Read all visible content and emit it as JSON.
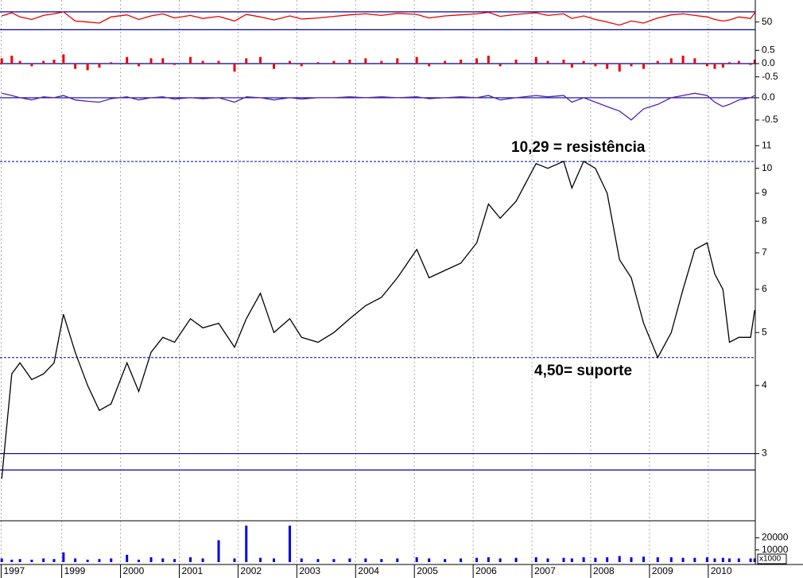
{
  "chart_data": [
    {
      "type": "line",
      "color": "#ee0000",
      "x": [
        1997.98,
        1998.15,
        1998.29,
        1998.49,
        1998.69,
        1998.87,
        1999.03,
        1999.23,
        1999.44,
        1999.64,
        1999.84,
        2000.11,
        2000.31,
        2000.52,
        2000.72,
        2000.92,
        2001.19,
        2001.4,
        2001.67,
        2001.94,
        2002.14,
        2002.38,
        2002.61,
        2002.88,
        2003.08,
        2003.36,
        2003.63,
        2003.9,
        2004.17,
        2004.44,
        2004.71,
        2005.04,
        2005.25,
        2005.52,
        2005.79,
        2006.06,
        2006.26,
        2006.46,
        2006.73,
        2007.07,
        2007.27,
        2007.54,
        2007.68,
        2007.88,
        2008.08,
        2008.28,
        2008.49,
        2008.69,
        2008.9,
        2009.14,
        2009.37,
        2009.57,
        2009.77,
        2009.98,
        2010.11,
        2010.25,
        2010.36,
        2010.52,
        2010.72,
        2010.79
      ],
      "values": [
        62,
        68,
        60,
        55,
        63,
        66,
        70,
        52,
        50,
        48,
        60,
        64,
        55,
        62,
        66,
        58,
        63,
        57,
        61,
        52,
        65,
        60,
        54,
        62,
        56,
        58,
        61,
        64,
        66,
        63,
        67,
        65,
        58,
        62,
        64,
        66,
        69,
        61,
        65,
        68,
        63,
        66,
        57,
        62,
        55,
        50,
        44,
        52,
        48,
        58,
        64,
        66,
        63,
        60,
        55,
        52,
        54,
        60,
        57,
        68
      ],
      "ylim": [
        20,
        90
      ],
      "yticks": [
        50
      ],
      "reference_lines": [
        70,
        35
      ],
      "reference_color": "#0000aa"
    },
    {
      "type": "bar",
      "color": "#ee0000",
      "x": [
        1997.98,
        1998.15,
        1998.29,
        1998.49,
        1998.69,
        1998.87,
        1999.03,
        1999.23,
        1999.44,
        1999.64,
        1999.84,
        2000.11,
        2000.31,
        2000.52,
        2000.72,
        2000.92,
        2001.19,
        2001.4,
        2001.67,
        2001.94,
        2002.14,
        2002.38,
        2002.61,
        2002.88,
        2003.08,
        2003.36,
        2003.63,
        2003.9,
        2004.17,
        2004.44,
        2004.71,
        2005.04,
        2005.25,
        2005.52,
        2005.79,
        2006.06,
        2006.26,
        2006.46,
        2006.73,
        2007.07,
        2007.27,
        2007.54,
        2007.68,
        2007.88,
        2008.08,
        2008.28,
        2008.49,
        2008.69,
        2008.9,
        2009.14,
        2009.37,
        2009.57,
        2009.77,
        2009.98,
        2010.11,
        2010.25,
        2010.36,
        2010.52,
        2010.72,
        2010.79
      ],
      "values": [
        0.2,
        0.3,
        0.1,
        -0.1,
        0.1,
        0.15,
        0.35,
        -0.2,
        -0.25,
        -0.15,
        0.05,
        0.25,
        -0.1,
        0.2,
        0.2,
        -0.05,
        0.25,
        0.1,
        0.1,
        -0.3,
        0.2,
        0.25,
        -0.2,
        0.1,
        -0.1,
        0.05,
        0.1,
        0.15,
        0.2,
        0.1,
        0.2,
        0.25,
        -0.1,
        0.1,
        0.15,
        0.2,
        0.3,
        -0.1,
        0.15,
        0.25,
        0.1,
        0.15,
        -0.15,
        0.1,
        -0.1,
        -0.2,
        -0.3,
        -0.1,
        -0.2,
        0.1,
        0.2,
        0.3,
        0.2,
        -0.1,
        -0.2,
        -0.15,
        0.05,
        0.1,
        -0.05,
        0.15
      ],
      "ylim": [
        -0.6,
        0.9
      ],
      "yticks": [
        0.5,
        {
          "value": 0,
          "label": "0.0"
        },
        -0.5
      ],
      "reference_lines": [
        0
      ],
      "reference_color": "#0000aa"
    },
    {
      "type": "line",
      "color": "#5522aa",
      "x": [
        1997.98,
        1998.15,
        1998.29,
        1998.49,
        1998.69,
        1998.87,
        1999.03,
        1999.23,
        1999.44,
        1999.64,
        1999.84,
        2000.11,
        2000.31,
        2000.52,
        2000.72,
        2000.92,
        2001.19,
        2001.4,
        2001.67,
        2001.94,
        2002.14,
        2002.38,
        2002.61,
        2002.88,
        2003.08,
        2003.36,
        2003.63,
        2003.9,
        2004.17,
        2004.44,
        2004.71,
        2005.04,
        2005.25,
        2005.52,
        2005.79,
        2006.06,
        2006.26,
        2006.46,
        2006.73,
        2007.07,
        2007.27,
        2007.54,
        2007.68,
        2007.88,
        2008.08,
        2008.28,
        2008.49,
        2008.69,
        2008.9,
        2009.14,
        2009.37,
        2009.57,
        2009.77,
        2009.98,
        2010.11,
        2010.25,
        2010.36,
        2010.52,
        2010.72,
        2010.79
      ],
      "values": [
        0.1,
        0.05,
        0.0,
        -0.05,
        0.02,
        0.0,
        0.05,
        -0.05,
        -0.08,
        -0.1,
        -0.02,
        0.02,
        -0.05,
        0.0,
        0.02,
        -0.03,
        0.0,
        -0.02,
        0.0,
        -0.1,
        0.02,
        0.0,
        -0.05,
        0.0,
        -0.03,
        0.0,
        0.0,
        0.02,
        0.0,
        0.02,
        0.0,
        0.02,
        -0.02,
        0.0,
        0.02,
        0.0,
        0.05,
        -0.05,
        0.0,
        0.05,
        0.02,
        0.05,
        -0.1,
        0.0,
        -0.1,
        -0.2,
        -0.3,
        -0.5,
        -0.25,
        -0.15,
        0.0,
        0.05,
        0.1,
        0.05,
        -0.1,
        -0.2,
        -0.15,
        -0.05,
        0.0,
        0.05
      ],
      "ylim": [
        -0.84,
        0.32
      ],
      "yticks": [
        {
          "value": 0,
          "label": "0.0"
        },
        -0.5
      ],
      "reference_lines": [
        0
      ],
      "reference_color": "#0000aa"
    },
    {
      "type": "line",
      "color": "#000000",
      "log_scale": true,
      "x": [
        1997.98,
        1998.15,
        1998.29,
        1998.49,
        1998.69,
        1998.87,
        1999.03,
        1999.23,
        1999.44,
        1999.64,
        1999.84,
        2000.11,
        2000.31,
        2000.52,
        2000.72,
        2000.92,
        2001.19,
        2001.4,
        2001.67,
        2001.94,
        2002.14,
        2002.38,
        2002.61,
        2002.88,
        2003.08,
        2003.36,
        2003.63,
        2003.9,
        2004.17,
        2004.44,
        2004.71,
        2005.04,
        2005.25,
        2005.52,
        2005.79,
        2006.06,
        2006.26,
        2006.46,
        2006.73,
        2007.07,
        2007.27,
        2007.54,
        2007.68,
        2007.88,
        2008.08,
        2008.28,
        2008.49,
        2008.69,
        2008.9,
        2009.14,
        2009.37,
        2009.57,
        2009.77,
        2009.98,
        2010.11,
        2010.25,
        2010.36,
        2010.52,
        2010.72,
        2010.79
      ],
      "values": [
        2.7,
        4.2,
        4.4,
        4.1,
        4.2,
        4.4,
        5.4,
        4.6,
        4.0,
        3.6,
        3.7,
        4.4,
        3.9,
        4.6,
        4.9,
        4.8,
        5.3,
        5.1,
        5.2,
        4.7,
        5.3,
        5.9,
        5.0,
        5.3,
        4.9,
        4.8,
        5.0,
        5.3,
        5.6,
        5.8,
        6.3,
        7.1,
        6.3,
        6.5,
        6.7,
        7.3,
        8.6,
        8.1,
        8.7,
        10.2,
        10.0,
        10.3,
        9.2,
        10.3,
        10.0,
        9.0,
        6.8,
        6.3,
        5.2,
        4.5,
        5.0,
        6.0,
        7.1,
        7.3,
        6.4,
        6.0,
        4.8,
        4.9,
        4.9,
        5.5
      ],
      "xlim": [
        1997.95,
        2010.8
      ],
      "xticks": [
        {
          "value": 1997.97,
          "label": "1997"
        },
        1999,
        2000,
        2001,
        2002,
        2003,
        2004,
        2005,
        2006,
        2007,
        2008,
        2009,
        2010
      ],
      "ylim": [
        2.26,
        11.5
      ],
      "yticks": [
        3,
        4,
        5,
        6,
        7,
        8,
        9,
        10,
        11
      ],
      "dashed_lines": [
        10.29,
        4.5
      ],
      "reference_lines": [
        3.0,
        2.8
      ],
      "reference_color": "#0000aa",
      "annotations": [
        "10,29 = resistência",
        "4,50= suporte"
      ]
    },
    {
      "type": "bar",
      "color": "#0000ee",
      "x": [
        1997.98,
        1998.15,
        1998.29,
        1998.49,
        1998.69,
        1998.87,
        1999.03,
        1999.23,
        1999.44,
        1999.64,
        1999.84,
        2000.11,
        2000.31,
        2000.52,
        2000.72,
        2000.92,
        2001.19,
        2001.4,
        2001.67,
        2001.94,
        2002.14,
        2002.38,
        2002.61,
        2002.88,
        2003.08,
        2003.36,
        2003.63,
        2003.9,
        2004.17,
        2004.44,
        2004.71,
        2005.04,
        2005.25,
        2005.52,
        2005.79,
        2006.06,
        2006.26,
        2006.46,
        2006.73,
        2007.07,
        2007.27,
        2007.54,
        2007.68,
        2007.88,
        2008.08,
        2008.28,
        2008.49,
        2008.69,
        2008.9,
        2009.14,
        2009.37,
        2009.57,
        2009.77,
        2009.98,
        2010.11,
        2010.25,
        2010.36,
        2010.52,
        2010.72,
        2010.79
      ],
      "values": [
        3000,
        2000,
        2500,
        2000,
        3000,
        2500,
        8000,
        3000,
        2000,
        2500,
        3000,
        6000,
        2000,
        4000,
        3000,
        2500,
        4000,
        3000,
        18000,
        3000,
        30000,
        3500,
        3000,
        30000,
        3000,
        2500,
        2500,
        3000,
        3000,
        2500,
        3000,
        4000,
        3000,
        2500,
        3000,
        3500,
        4000,
        3000,
        3500,
        4000,
        3000,
        3500,
        3000,
        4000,
        3500,
        4000,
        5000,
        4000,
        4500,
        4000,
        4000,
        3500,
        3500,
        4000,
        3000,
        3500,
        3000,
        3000,
        3000,
        3000
      ],
      "ylim": [
        0,
        34000
      ],
      "yticks": [
        20000,
        10000
      ],
      "unit_label": "x1000"
    }
  ]
}
